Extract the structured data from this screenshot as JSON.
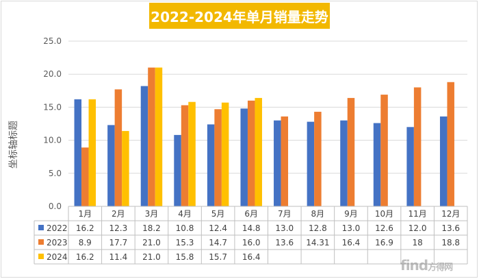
{
  "chart_data": {
    "type": "bar",
    "title": "2022-2024年单月销量走势",
    "ylabel": "坐标轴标题",
    "xlabel": "",
    "ylim": [
      0,
      25
    ],
    "yticks": [
      "0.0",
      "5.0",
      "10.0",
      "15.0",
      "20.0",
      "25.0"
    ],
    "grid": true,
    "legend": "table-left",
    "categories": [
      "1月",
      "2月",
      "3月",
      "4月",
      "5月",
      "6月",
      "7月",
      "8月",
      "9月",
      "10月",
      "11月",
      "12月"
    ],
    "series": [
      {
        "name": "2022",
        "color": "#4472c4",
        "values": [
          16.2,
          12.3,
          18.2,
          10.8,
          12.4,
          14.8,
          13.0,
          12.8,
          13.0,
          12.6,
          12.0,
          13.6
        ],
        "labels": [
          "16.2",
          "12.3",
          "18.2",
          "10.8",
          "12.4",
          "14.8",
          "13.0",
          "12.8",
          "13.0",
          "12.6",
          "12.0",
          "13.6"
        ]
      },
      {
        "name": "2023",
        "color": "#ed7d31",
        "values": [
          8.9,
          17.7,
          21.0,
          15.3,
          14.7,
          16.0,
          13.6,
          14.31,
          16.4,
          16.9,
          18,
          18.8
        ],
        "labels": [
          "8.9",
          "17.7",
          "21.0",
          "15.3",
          "14.7",
          "16.0",
          "13.6",
          "14.31",
          "16.4",
          "16.9",
          "18",
          "18.8"
        ]
      },
      {
        "name": "2024",
        "color": "#ffc000",
        "values": [
          16.2,
          11.4,
          21.0,
          15.8,
          15.7,
          16.4,
          null,
          null,
          null,
          null,
          null,
          null
        ],
        "labels": [
          "16.2",
          "11.4",
          "21.0",
          "15.8",
          "15.7",
          "16.4",
          "",
          "",
          "",
          "",
          "",
          ""
        ]
      }
    ]
  },
  "watermark": {
    "brand": "find",
    "sub": "方得网"
  }
}
